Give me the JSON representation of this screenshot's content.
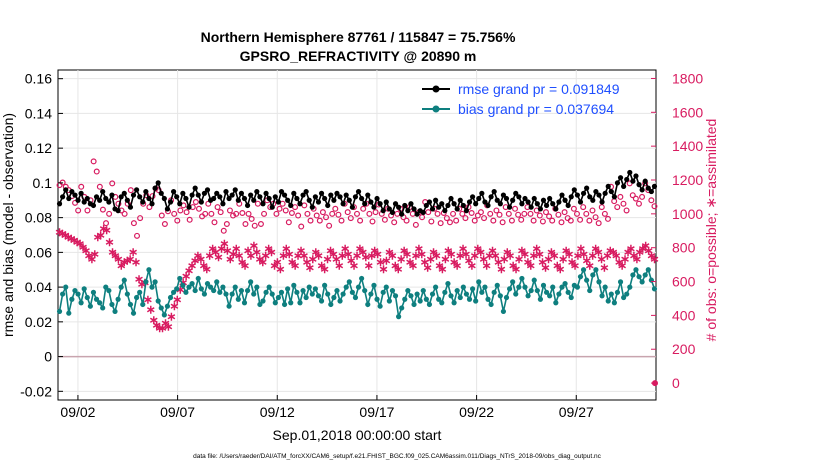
{
  "chart_data": {
    "type": "line",
    "title_line1": "Northern Hemisphere 87761 / 115847 = 75.756%",
    "title_line2": "GPSRO_REFRACTIVITY @ 20890 m",
    "xlabel": "Sep.01,2018 00:00:00 start",
    "ylabel_left": "rmse and bias (model - observation)",
    "ylabel_right": "# of obs: o=possible; ∗=assimilated",
    "footer": "data file: /Users/raeder/DAI/ATM_forcXX/CAM6_setup/f.e21.FHIST_BGC.f09_025.CAM6assim.011/Diags_NTrS_2018-09/obs_diag_output.nc",
    "x_range_days": [
      0,
      30
    ],
    "x_ticks": [
      {
        "day": 1,
        "label": "09/02"
      },
      {
        "day": 6,
        "label": "09/07"
      },
      {
        "day": 11,
        "label": "09/12"
      },
      {
        "day": 16,
        "label": "09/17"
      },
      {
        "day": 21,
        "label": "09/22"
      },
      {
        "day": 26,
        "label": "09/27"
      }
    ],
    "y_left_range": [
      -0.025,
      0.165
    ],
    "y_left_ticks": [
      "-0.02",
      "0",
      "0.02",
      "0.04",
      "0.06",
      "0.08",
      "0.1",
      "0.12",
      "0.14",
      "0.16"
    ],
    "y_right_range": [
      -100,
      1850
    ],
    "y_right_ticks": [
      "0",
      "200",
      "400",
      "600",
      "800",
      "1000",
      "1200",
      "1400",
      "1600",
      "1800"
    ],
    "legend": [
      {
        "label": "rmse grand pr = 0.091849",
        "color": "#000000"
      },
      {
        "label": "bias grand pr = 0.037694",
        "color": "#0e7f7f"
      }
    ],
    "colors": {
      "rmse": "#000000",
      "bias": "#0e7f7f",
      "obs": "#d81b60",
      "zero_line": "#c8a4ae",
      "right_axis": "#d81b60",
      "legend_text": "#1f4fff"
    },
    "series": [
      {
        "name": "rmse",
        "values": [
          0.088,
          0.092,
          0.096,
          0.091,
          0.095,
          0.093,
          0.09,
          0.094,
          0.089,
          0.091,
          0.088,
          0.087,
          0.092,
          0.09,
          0.095,
          0.091,
          0.089,
          0.093,
          0.085,
          0.084,
          0.092,
          0.094,
          0.09,
          0.086,
          0.093,
          0.096,
          0.092,
          0.089,
          0.095,
          0.091,
          0.088,
          0.097,
          0.1,
          0.094,
          0.091,
          0.085,
          0.089,
          0.095,
          0.092,
          0.088,
          0.094,
          0.091,
          0.086,
          0.093,
          0.097,
          0.093,
          0.089,
          0.094,
          0.096,
          0.09,
          0.091,
          0.094,
          0.092,
          0.088,
          0.095,
          0.091,
          0.093,
          0.096,
          0.09,
          0.094,
          0.091,
          0.087,
          0.093,
          0.09,
          0.095,
          0.092,
          0.088,
          0.094,
          0.091,
          0.086,
          0.092,
          0.089,
          0.095,
          0.093,
          0.09,
          0.087,
          0.094,
          0.091,
          0.088,
          0.093,
          0.095,
          0.09,
          0.086,
          0.092,
          0.089,
          0.094,
          0.091,
          0.087,
          0.093,
          0.09,
          0.094,
          0.092,
          0.088,
          0.093,
          0.09,
          0.086,
          0.092,
          0.095,
          0.091,
          0.088,
          0.093,
          0.089,
          0.086,
          0.091,
          0.088,
          0.084,
          0.089,
          0.085,
          0.083,
          0.088,
          0.086,
          0.082,
          0.087,
          0.084,
          0.088,
          0.085,
          0.082,
          0.084,
          0.083,
          0.087,
          0.089,
          0.085,
          0.09,
          0.086,
          0.088,
          0.084,
          0.087,
          0.091,
          0.088,
          0.085,
          0.09,
          0.087,
          0.084,
          0.089,
          0.092,
          0.088,
          0.091,
          0.094,
          0.089,
          0.087,
          0.092,
          0.095,
          0.09,
          0.088,
          0.093,
          0.091,
          0.086,
          0.09,
          0.094,
          0.092,
          0.088,
          0.091,
          0.089,
          0.086,
          0.091,
          0.088,
          0.085,
          0.09,
          0.087,
          0.091,
          0.088,
          0.085,
          0.089,
          0.093,
          0.09,
          0.087,
          0.092,
          0.096,
          0.093,
          0.089,
          0.094,
          0.097,
          0.092,
          0.09,
          0.095,
          0.093,
          0.089,
          0.094,
          0.098,
          0.095,
          0.092,
          0.1,
          0.103,
          0.098,
          0.102,
          0.106,
          0.101,
          0.104,
          0.099,
          0.096,
          0.101,
          0.097,
          0.095,
          0.098
        ]
      },
      {
        "name": "bias",
        "values": [
          0.026,
          0.036,
          0.04,
          0.025,
          0.033,
          0.038,
          0.036,
          0.031,
          0.039,
          0.034,
          0.029,
          0.037,
          0.033,
          0.031,
          0.028,
          0.04,
          0.038,
          0.03,
          0.026,
          0.033,
          0.04,
          0.044,
          0.036,
          0.03,
          0.025,
          0.034,
          0.037,
          0.03,
          0.043,
          0.05,
          0.04,
          0.043,
          0.032,
          0.028,
          0.024,
          0.029,
          0.034,
          0.037,
          0.039,
          0.045,
          0.041,
          0.037,
          0.04,
          0.042,
          0.038,
          0.045,
          0.039,
          0.036,
          0.042,
          0.04,
          0.038,
          0.043,
          0.037,
          0.04,
          0.036,
          0.029,
          0.036,
          0.04,
          0.033,
          0.038,
          0.031,
          0.038,
          0.043,
          0.036,
          0.04,
          0.03,
          0.032,
          0.037,
          0.04,
          0.036,
          0.031,
          0.034,
          0.037,
          0.03,
          0.039,
          0.031,
          0.041,
          0.037,
          0.031,
          0.038,
          0.034,
          0.04,
          0.036,
          0.039,
          0.035,
          0.032,
          0.041,
          0.036,
          0.03,
          0.034,
          0.038,
          0.032,
          0.036,
          0.04,
          0.043,
          0.037,
          0.034,
          0.04,
          0.045,
          0.038,
          0.03,
          0.036,
          0.041,
          0.033,
          0.029,
          0.037,
          0.04,
          0.032,
          0.038,
          0.035,
          0.023,
          0.028,
          0.033,
          0.038,
          0.035,
          0.03,
          0.036,
          0.032,
          0.038,
          0.033,
          0.03,
          0.036,
          0.04,
          0.033,
          0.031,
          0.037,
          0.042,
          0.035,
          0.031,
          0.038,
          0.034,
          0.04,
          0.036,
          0.033,
          0.039,
          0.032,
          0.043,
          0.037,
          0.04,
          0.033,
          0.03,
          0.037,
          0.041,
          0.035,
          0.026,
          0.034,
          0.039,
          0.043,
          0.036,
          0.04,
          0.045,
          0.04,
          0.035,
          0.038,
          0.044,
          0.038,
          0.033,
          0.041,
          0.037,
          0.035,
          0.04,
          0.031,
          0.036,
          0.04,
          0.042,
          0.037,
          0.034,
          0.041,
          0.04,
          0.046,
          0.05,
          0.044,
          0.038,
          0.047,
          0.05,
          0.043,
          0.035,
          0.04,
          0.032,
          0.036,
          0.031,
          0.037,
          0.043,
          0.034,
          0.036,
          0.04,
          0.047,
          0.05,
          0.046,
          0.043,
          0.047,
          0.05,
          0.044,
          0.039
        ]
      },
      {
        "name": "obs_possible",
        "values": [
          1170,
          1185,
          1160,
          1140,
          1105,
          1065,
          1020,
          1160,
          1100,
          1020,
          1080,
          1310,
          1250,
          1160,
          1025,
          945,
          1000,
          1180,
          1100,
          1060,
          1020,
          1000,
          1060,
          1140,
          945,
          870,
          975,
          1060,
          1110,
          1040,
          1105,
          1150,
          1140,
          990,
          940,
          1015,
          1080,
          1000,
          960,
          1020,
          1050,
          1010,
          965,
          1040,
          1070,
          1030,
          985,
          1000,
          1060,
          1000,
          950,
          1040,
          1010,
          900,
          940,
          1020,
          990,
          1000,
          1060,
          1005,
          940,
          1000,
          970,
          930,
          1060,
          940,
          1000,
          1080,
          1040,
          1060,
          1000,
          1030,
          1060,
          1020,
          950,
          1005,
          1040,
          990,
          925,
          1050,
          1000,
          960,
          1030,
          990,
          960,
          1010,
          980,
          930,
          1000,
          1030,
          995,
          960,
          1060,
          1010,
          975,
          1040,
          1000,
          960,
          1030,
          1060,
          1000,
          955,
          1010,
          1055,
          1000,
          965,
          1030,
          990,
          950,
          1000,
          1030,
          980,
          960,
          1040,
          1000,
          935,
          1010,
          980,
          1070,
          1010,
          955,
          1030,
          1000,
          945,
          1005,
          975,
          950,
          1000,
          960,
          1030,
          1000,
          975,
          1040,
          1005,
          960,
          990,
          1010,
          975,
          1050,
          1000,
          960,
          1020,
          995,
          950,
          1040,
          1000,
          960,
          1030,
          995,
          965,
          1000,
          1040,
          1000,
          960,
          1020,
          990,
          955,
          1010,
          985,
          960,
          1030,
          995,
          950,
          1010,
          975,
          960,
          1030,
          1000,
          965,
          1040,
          1000,
          960,
          1020,
          980,
          945,
          1040,
          1000,
          970,
          1160,
          1075,
          1040,
          1100,
          1060,
          1020,
          1180,
          1110,
          1090,
          1060,
          1100,
          1180,
          1140,
          1080,
          1045
        ]
      },
      {
        "name": "obs_assimilated",
        "values": [
          900,
          890,
          880,
          870,
          860,
          850,
          840,
          830,
          810,
          790,
          760,
          740,
          770,
          870,
          880,
          920,
          910,
          840,
          780,
          760,
          740,
          700,
          720,
          730,
          740,
          780,
          720,
          620,
          590,
          600,
          500,
          440,
          380,
          350,
          330,
          330,
          360,
          340,
          400,
          460,
          500,
          560,
          600,
          640,
          670,
          700,
          730,
          760,
          740,
          700,
          680,
          760,
          800,
          780,
          750,
          800,
          830,
          790,
          740,
          770,
          800,
          760,
          720,
          700,
          790,
          760,
          820,
          780,
          740,
          720,
          760,
          800,
          780,
          700,
          720,
          680,
          760,
          800,
          770,
          720,
          700,
          760,
          790,
          760,
          720,
          690,
          740,
          780,
          760,
          700,
          680,
          740,
          790,
          770,
          740,
          700,
          760,
          800,
          770,
          730,
          700,
          760,
          800,
          780,
          750,
          700,
          760,
          790,
          770,
          720,
          680,
          730,
          780,
          760,
          700,
          680,
          740,
          790,
          770,
          720,
          700,
          760,
          800,
          770,
          720,
          690,
          740,
          780,
          760,
          700,
          680,
          740,
          790,
          770,
          720,
          700,
          760,
          800,
          770,
          730,
          700,
          760,
          800,
          780,
          740,
          700,
          760,
          790,
          760,
          720,
          680,
          740,
          780,
          760,
          700,
          680,
          740,
          790,
          770,
          720,
          700,
          760,
          800,
          770,
          720,
          690,
          740,
          780,
          760,
          700,
          680,
          740,
          790,
          770,
          720,
          700,
          760,
          800,
          770,
          730,
          700,
          760,
          800,
          780,
          740,
          690,
          760,
          790,
          780,
          760,
          720,
          700,
          740,
          780,
          800,
          760,
          740,
          780,
          800,
          820,
          790,
          760,
          740
        ]
      }
    ]
  }
}
